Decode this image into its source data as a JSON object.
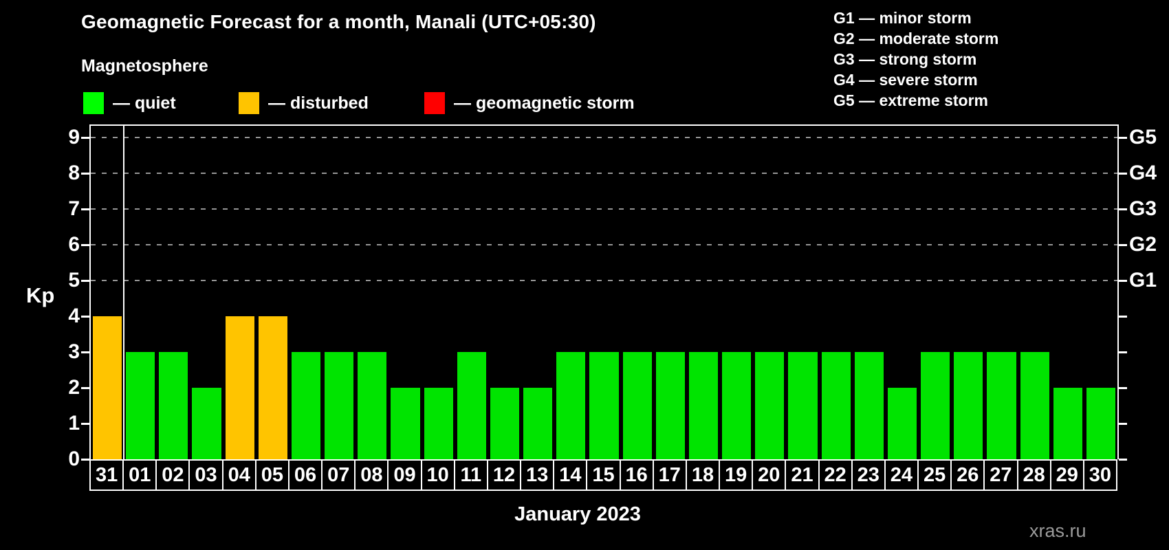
{
  "title": "Geomagnetic Forecast for a month, Manali (UTC+05:30)",
  "subtitle": "Magnetosphere",
  "legend": {
    "items": [
      {
        "label": "— quiet",
        "status": "quiet",
        "color": "#00FF00"
      },
      {
        "label": "— disturbed",
        "status": "disturbed",
        "color": "#FFC400"
      },
      {
        "label": "— geomagnetic storm",
        "status": "storm",
        "color": "#FF0000"
      }
    ]
  },
  "storm_scale_legend": [
    "G1 — minor storm",
    "G2 — moderate storm",
    "G3 — strong storm",
    "G4 — severe storm",
    "G5 — extreme storm"
  ],
  "footer": {
    "caption": "January 2023",
    "watermark": "xras.ru"
  },
  "chart_data": {
    "type": "bar",
    "title": "Geomagnetic Forecast for a month, Manali (UTC+05:30)",
    "subtitle": "Magnetosphere",
    "xlabel": "January 2023",
    "ylabel": "Kp",
    "ylim": [
      0,
      9
    ],
    "yticks": [
      0,
      1,
      2,
      3,
      4,
      5,
      6,
      7,
      8,
      9
    ],
    "grid_levels": [
      5,
      6,
      7,
      8,
      9
    ],
    "grid_style": "dashed",
    "legend_position": "top-left",
    "right_axis": [
      {
        "level": 5,
        "label": "G1"
      },
      {
        "level": 6,
        "label": "G2"
      },
      {
        "level": 7,
        "label": "G3"
      },
      {
        "level": 8,
        "label": "G4"
      },
      {
        "level": 9,
        "label": "G5"
      }
    ],
    "categories": [
      "31",
      "01",
      "02",
      "03",
      "04",
      "05",
      "06",
      "07",
      "08",
      "09",
      "10",
      "11",
      "12",
      "13",
      "14",
      "15",
      "16",
      "17",
      "18",
      "19",
      "20",
      "21",
      "22",
      "23",
      "24",
      "25",
      "26",
      "27",
      "28",
      "29",
      "30"
    ],
    "values": [
      4,
      3,
      3,
      2,
      4,
      4,
      3,
      3,
      3,
      2,
      2,
      3,
      2,
      2,
      3,
      3,
      3,
      3,
      3,
      3,
      3,
      3,
      3,
      3,
      2,
      3,
      3,
      3,
      3,
      2,
      2
    ],
    "statuses": [
      "disturbed",
      "quiet",
      "quiet",
      "quiet",
      "disturbed",
      "disturbed",
      "quiet",
      "quiet",
      "quiet",
      "quiet",
      "quiet",
      "quiet",
      "quiet",
      "quiet",
      "quiet",
      "quiet",
      "quiet",
      "quiet",
      "quiet",
      "quiet",
      "quiet",
      "quiet",
      "quiet",
      "quiet",
      "quiet",
      "quiet",
      "quiet",
      "quiet",
      "quiet",
      "quiet",
      "quiet"
    ],
    "status_colors": {
      "quiet": "#00E400",
      "disturbed": "#FFC400",
      "storm": "#FF0000"
    },
    "month_separator_after_index": 0
  }
}
